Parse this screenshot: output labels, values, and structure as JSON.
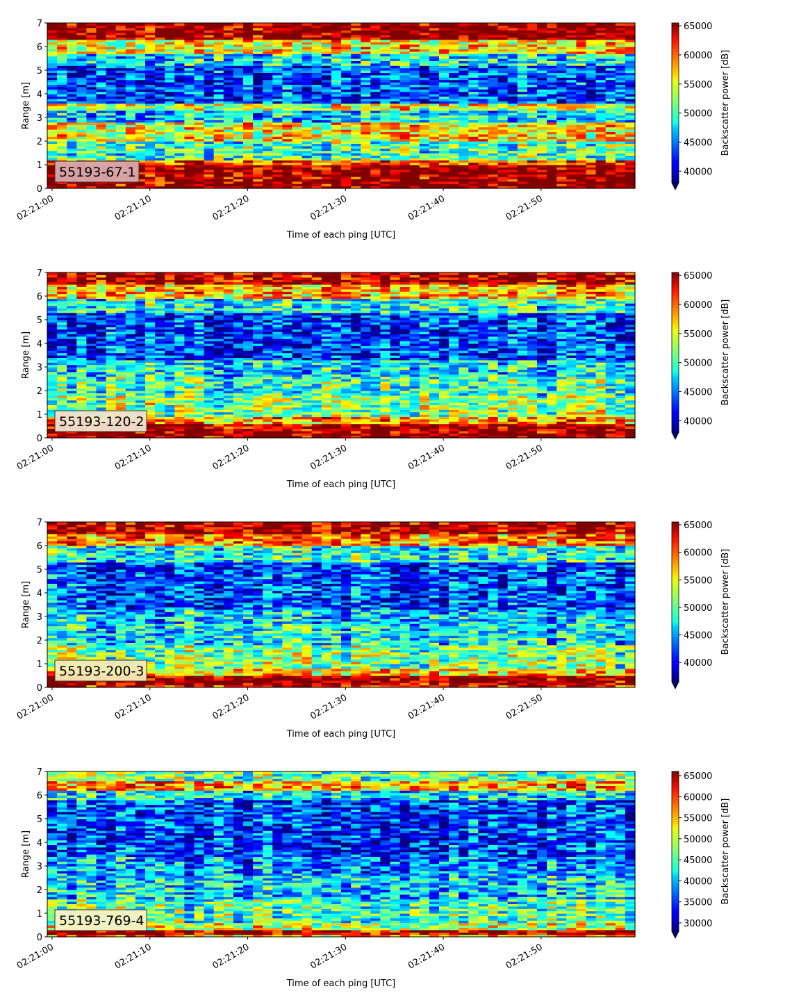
{
  "chart_data": [
    {
      "type": "heatmap",
      "label": "55193-67-1",
      "label_bg": "#d9a9ad",
      "xlabel": "Time of each ping [UTC]",
      "ylabel": "Range [m]",
      "x_start": "02:21:00",
      "x_end": "02:21:59",
      "x_ticks": [
        "02:21:00",
        "02:21:10",
        "02:21:20",
        "02:21:30",
        "02:21:40",
        "02:21:50"
      ],
      "y_ticks": [
        "0",
        "1",
        "2",
        "3",
        "4",
        "5",
        "6",
        "7"
      ],
      "ylim": [
        0,
        7
      ],
      "colorbar": {
        "label": "Backscatter power [dB]",
        "ticks": [
          "40000",
          "45000",
          "50000",
          "55000",
          "60000",
          "65000"
        ],
        "vmin": 38000,
        "vmax": 65500,
        "extend": "min",
        "colormap": "jet"
      },
      "bands": [
        {
          "range": [
            0.0,
            0.25
          ],
          "value": 65500
        },
        {
          "range": [
            0.25,
            1.05
          ],
          "value": 65000
        },
        {
          "range": [
            1.05,
            1.2
          ],
          "value": 60000
        },
        {
          "range": [
            1.2,
            2.0
          ],
          "value": 50000
        },
        {
          "range": [
            2.0,
            2.8
          ],
          "value": 55000
        },
        {
          "range": [
            2.8,
            3.3
          ],
          "value": 47000
        },
        {
          "range": [
            3.3,
            3.6
          ],
          "value": 54000
        },
        {
          "range": [
            3.6,
            5.2
          ],
          "value": 43000
        },
        {
          "range": [
            5.2,
            5.7
          ],
          "value": 48000
        },
        {
          "range": [
            5.7,
            6.3
          ],
          "value": 55000
        },
        {
          "range": [
            6.3,
            7.0
          ],
          "value": 65000
        }
      ]
    },
    {
      "type": "heatmap",
      "label": "55193-120-2",
      "label_bg": "#f1e3cf",
      "xlabel": "Time of each ping [UTC]",
      "ylabel": "Range [m]",
      "x_start": "02:21:00",
      "x_end": "02:21:59",
      "x_ticks": [
        "02:21:00",
        "02:21:10",
        "02:21:20",
        "02:21:30",
        "02:21:40",
        "02:21:50"
      ],
      "y_ticks": [
        "0",
        "1",
        "2",
        "3",
        "4",
        "5",
        "6",
        "7"
      ],
      "ylim": [
        0,
        7
      ],
      "colorbar": {
        "label": "Backscatter power [dB]",
        "ticks": [
          "40000",
          "45000",
          "50000",
          "55000",
          "60000",
          "65000"
        ],
        "vmin": 38000,
        "vmax": 65500,
        "extend": "min",
        "colormap": "jet"
      },
      "bands": [
        {
          "range": [
            0.0,
            0.1
          ],
          "value": 65000
        },
        {
          "range": [
            0.1,
            0.6
          ],
          "value": 65000
        },
        {
          "range": [
            0.6,
            0.9
          ],
          "value": 58000
        },
        {
          "range": [
            0.9,
            1.8
          ],
          "value": 52000
        },
        {
          "range": [
            1.8,
            2.6
          ],
          "value": 50000
        },
        {
          "range": [
            2.6,
            3.3
          ],
          "value": 48000
        },
        {
          "range": [
            3.3,
            5.3
          ],
          "value": 43000
        },
        {
          "range": [
            5.3,
            5.9
          ],
          "value": 49000
        },
        {
          "range": [
            5.9,
            6.5
          ],
          "value": 57000
        },
        {
          "range": [
            6.5,
            7.0
          ],
          "value": 64000
        }
      ]
    },
    {
      "type": "heatmap",
      "label": "55193-200-3",
      "label_bg": "#f6eab6",
      "xlabel": "Time of each ping [UTC]",
      "ylabel": "Range [m]",
      "x_start": "02:21:00",
      "x_end": "02:21:59",
      "x_ticks": [
        "02:21:00",
        "02:21:10",
        "02:21:20",
        "02:21:30",
        "02:21:40",
        "02:21:50"
      ],
      "y_ticks": [
        "0",
        "1",
        "2",
        "3",
        "4",
        "5",
        "6",
        "7"
      ],
      "ylim": [
        0,
        7
      ],
      "colorbar": {
        "label": "Backscatter power [dB]",
        "ticks": [
          "40000",
          "45000",
          "50000",
          "55000",
          "60000",
          "65000"
        ],
        "vmin": 36500,
        "vmax": 65500,
        "extend": "min",
        "colormap": "jet"
      },
      "bands": [
        {
          "range": [
            0.0,
            0.15
          ],
          "value": 62000
        },
        {
          "range": [
            0.15,
            0.5
          ],
          "value": 65000
        },
        {
          "range": [
            0.5,
            0.8
          ],
          "value": 56000
        },
        {
          "range": [
            0.8,
            1.8
          ],
          "value": 51000
        },
        {
          "range": [
            1.8,
            2.7
          ],
          "value": 47000
        },
        {
          "range": [
            2.7,
            3.3
          ],
          "value": 46000
        },
        {
          "range": [
            3.3,
            5.3
          ],
          "value": 42000
        },
        {
          "range": [
            5.3,
            6.0
          ],
          "value": 48000
        },
        {
          "range": [
            6.0,
            6.5
          ],
          "value": 58000
        },
        {
          "range": [
            6.5,
            7.0
          ],
          "value": 64000
        }
      ]
    },
    {
      "type": "heatmap",
      "label": "55193-769-4",
      "label_bg": "#f6f1c6",
      "xlabel": "Time of each ping [UTC]",
      "ylabel": "Range [m]",
      "x_start": "02:21:00",
      "x_end": "02:21:59",
      "x_ticks": [
        "02:21:00",
        "02:21:10",
        "02:21:20",
        "02:21:30",
        "02:21:40",
        "02:21:50"
      ],
      "y_ticks": [
        "0",
        "1",
        "2",
        "3",
        "4",
        "5",
        "6",
        "7"
      ],
      "ylim": [
        0,
        7
      ],
      "colorbar": {
        "label": "Backscatter power [dB]",
        "ticks": [
          "30000",
          "35000",
          "40000",
          "45000",
          "50000",
          "55000",
          "60000",
          "65000"
        ],
        "vmin": 28000,
        "vmax": 66000,
        "extend": "min",
        "colormap": "jet"
      },
      "bands": [
        {
          "range": [
            0.0,
            0.1
          ],
          "value": 55000
        },
        {
          "range": [
            0.1,
            0.35
          ],
          "value": 64000
        },
        {
          "range": [
            0.35,
            0.6
          ],
          "value": 50000
        },
        {
          "range": [
            0.6,
            1.6
          ],
          "value": 45000
        },
        {
          "range": [
            1.6,
            2.6
          ],
          "value": 41000
        },
        {
          "range": [
            2.6,
            3.4
          ],
          "value": 38000
        },
        {
          "range": [
            3.4,
            5.8
          ],
          "value": 35000
        },
        {
          "range": [
            5.8,
            6.2
          ],
          "value": 42000
        },
        {
          "range": [
            6.2,
            6.6
          ],
          "value": 55000
        },
        {
          "range": [
            6.6,
            7.0
          ],
          "value": 46000
        }
      ]
    }
  ]
}
